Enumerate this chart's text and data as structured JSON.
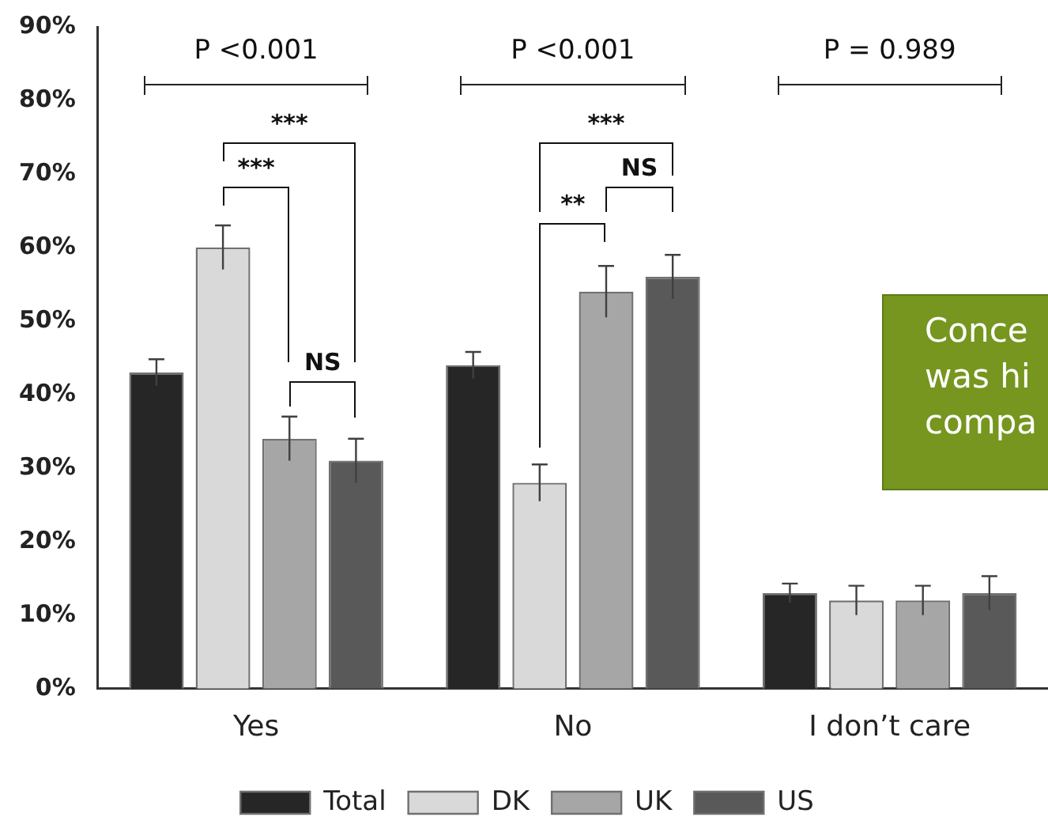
{
  "chart_data": {
    "type": "bar",
    "categories": [
      "Yes",
      "No",
      "I don’t care"
    ],
    "series": [
      {
        "name": "Total",
        "color": "#262626",
        "values": [
          43,
          44,
          13
        ],
        "errors": [
          1.8,
          1.8,
          1.3
        ]
      },
      {
        "name": "DK",
        "color": "#d9d9d9",
        "values": [
          60,
          28,
          12
        ],
        "errors": [
          3,
          2.5,
          2
        ]
      },
      {
        "name": "UK",
        "color": "#a6a6a6",
        "values": [
          34,
          54,
          12
        ],
        "errors": [
          3,
          3.5,
          2
        ]
      },
      {
        "name": "US",
        "color": "#595959",
        "values": [
          31,
          56,
          13
        ],
        "errors": [
          3,
          3,
          2.3
        ]
      }
    ],
    "ylim": [
      0,
      90
    ],
    "yticks": [
      {
        "value": 0,
        "label": "0%"
      },
      {
        "value": 10,
        "label": "10%"
      },
      {
        "value": 20,
        "label": "20%"
      },
      {
        "value": 30,
        "label": "30%"
      },
      {
        "value": 40,
        "label": "40%"
      },
      {
        "value": 50,
        "label": "50%"
      },
      {
        "value": 60,
        "label": "60%"
      },
      {
        "value": 70,
        "label": "70%"
      },
      {
        "value": 80,
        "label": "80%"
      },
      {
        "value": 90,
        "label": "90%"
      }
    ],
    "grid": false,
    "legend": "bottom",
    "annotations": [
      "P <0.001",
      "***",
      "***",
      "NS",
      "P <0.001",
      "***",
      "NS",
      "**",
      "P = 0.989",
      "Conce\nwas hi\ncompa"
    ]
  }
}
